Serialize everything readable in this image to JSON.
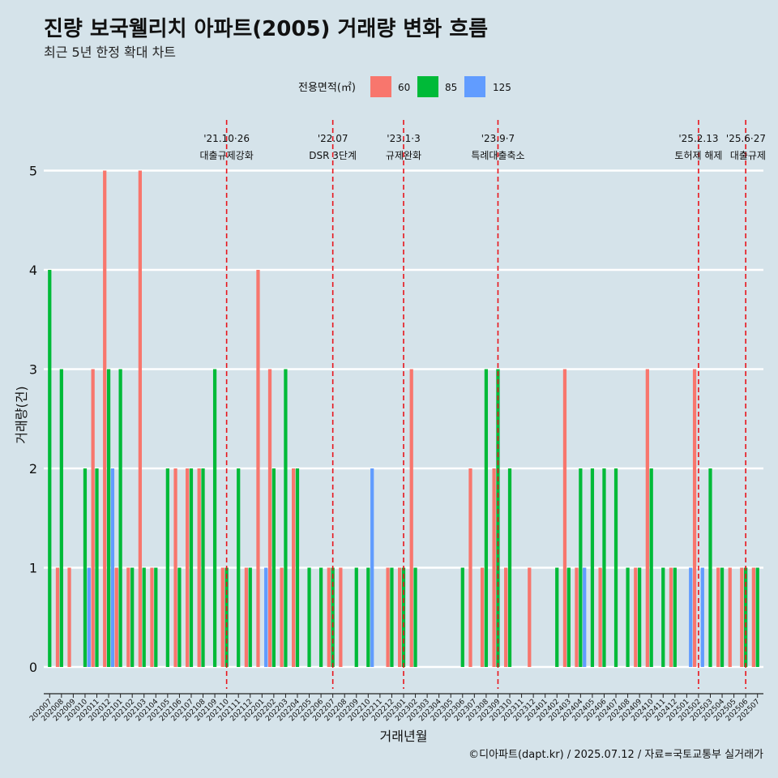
{
  "chart_data": {
    "type": "bar",
    "title": "진량 보국웰리치 아파트(2005) 거래량 변화 흐름",
    "subtitle": "최근 5년 한정 확대 차트",
    "xlabel": "거래년월",
    "ylabel": "거래량(건)",
    "caption": "©디아파트(dapt.kr) / 2025.07.12 / 자료=국토교통부 실거래가",
    "legend": {
      "title": "전용면적(㎡)",
      "position": "top"
    },
    "ylim": [
      0,
      5
    ],
    "yticks": [
      "0",
      "1",
      "2",
      "3",
      "4",
      "5"
    ],
    "series_meta": [
      {
        "name": "60",
        "color": "#f8766d"
      },
      {
        "name": "85",
        "color": "#00ba38"
      },
      {
        "name": "125",
        "color": "#619cff"
      }
    ],
    "categories": [
      "202007",
      "202008",
      "202009",
      "202010",
      "202011",
      "202012",
      "202101",
      "202102",
      "202103",
      "202104",
      "202105",
      "202106",
      "202107",
      "202108",
      "202109",
      "202110",
      "202111",
      "202112",
      "202201",
      "202202",
      "202203",
      "202204",
      "202205",
      "202206",
      "202207",
      "202208",
      "202209",
      "202210",
      "202211",
      "202212",
      "202301",
      "202302",
      "202303",
      "202304",
      "202305",
      "202306",
      "202307",
      "202308",
      "202309",
      "202310",
      "202311",
      "202312",
      "202401",
      "202402",
      "202403",
      "202404",
      "202405",
      "202406",
      "202407",
      "202408",
      "202409",
      "202410",
      "202411",
      "202412",
      "202501",
      "202502",
      "202503",
      "202504",
      "202505",
      "202506",
      "202507"
    ],
    "series": [
      {
        "name": "60",
        "values": [
          0,
          1,
          1,
          0,
          3,
          5,
          1,
          1,
          5,
          1,
          0,
          2,
          2,
          2,
          0,
          1,
          0,
          1,
          4,
          3,
          1,
          2,
          0,
          0,
          1,
          1,
          0,
          0,
          0,
          1,
          1,
          3,
          0,
          0,
          0,
          0,
          2,
          1,
          2,
          1,
          0,
          1,
          0,
          0,
          3,
          1,
          0,
          1,
          0,
          0,
          1,
          3,
          0,
          1,
          0,
          3,
          0,
          1,
          1,
          1,
          1
        ]
      },
      {
        "name": "85",
        "values": [
          4,
          3,
          0,
          2,
          2,
          3,
          3,
          1,
          1,
          1,
          2,
          1,
          2,
          2,
          3,
          1,
          2,
          1,
          0,
          2,
          3,
          2,
          1,
          1,
          1,
          0,
          1,
          1,
          0,
          1,
          1,
          1,
          0,
          0,
          0,
          1,
          0,
          3,
          3,
          2,
          0,
          0,
          0,
          1,
          1,
          2,
          2,
          2,
          2,
          1,
          1,
          2,
          1,
          1,
          0,
          0,
          2,
          1,
          0,
          1,
          1
        ]
      },
      {
        "name": "125",
        "values": [
          0,
          0,
          0,
          1,
          0,
          2,
          0,
          0,
          0,
          0,
          0,
          0,
          0,
          0,
          0,
          0,
          0,
          0,
          1,
          0,
          0,
          0,
          0,
          0,
          0,
          0,
          0,
          2,
          0,
          0,
          0,
          0,
          0,
          0,
          0,
          0,
          0,
          0,
          0,
          0,
          0,
          0,
          0,
          0,
          0,
          1,
          0,
          0,
          0,
          0,
          0,
          0,
          0,
          0,
          1,
          1,
          0,
          0,
          0,
          0,
          0
        ]
      }
    ],
    "annotations": [
      {
        "at": "202110",
        "date": "'21.10·26",
        "label": "대출규제강화"
      },
      {
        "at": "202207",
        "date": "'22.07",
        "label": "DSR 3단계"
      },
      {
        "at": "202301",
        "date": "'23.1·3",
        "label": "규제완화"
      },
      {
        "at": "202309",
        "date": "'23.9·7",
        "label": "특례대출축소"
      },
      {
        "at": "202502",
        "date": "'25.2.13",
        "label": "토허제 해제"
      },
      {
        "at": "202506",
        "date": "'25.6·27",
        "label": "대출규제"
      }
    ]
  }
}
